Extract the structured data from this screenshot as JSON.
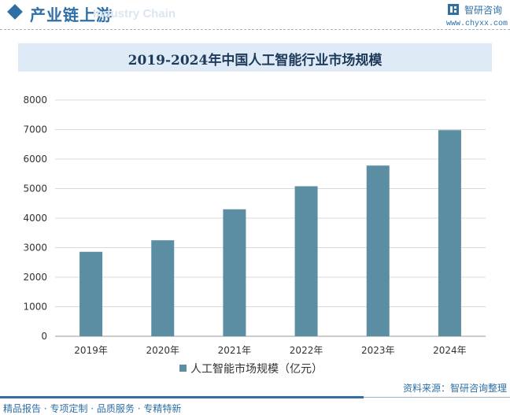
{
  "header": {
    "section_title": "产业链上游",
    "section_subtitle": "Industry Chain",
    "brand_name": "智研咨询",
    "brand_url": "www.chyxx.com"
  },
  "colors": {
    "bar": "#5b8ea3",
    "accent": "#2f6fa5",
    "title_band": "#deeaf6"
  },
  "chart_data": {
    "type": "bar",
    "title": "2019-2024年中国人工智能行业市场规模",
    "categories": [
      "2019年",
      "2020年",
      "2021年",
      "2022年",
      "2023年",
      "2024年"
    ],
    "series": [
      {
        "name": "人工智能市场规模（亿元）",
        "values": [
          2860,
          3250,
          4300,
          5080,
          5780,
          6980
        ]
      }
    ],
    "ylim": [
      0,
      8000
    ],
    "yticks": [
      0,
      1000,
      2000,
      3000,
      4000,
      5000,
      6000,
      7000,
      8000
    ],
    "grid": true,
    "legend": "bottom"
  },
  "footer": {
    "source": "资料来源：智研咨询整理",
    "tags": "精品报告 · 专项定制 · 品质服务 · 专精特新"
  }
}
